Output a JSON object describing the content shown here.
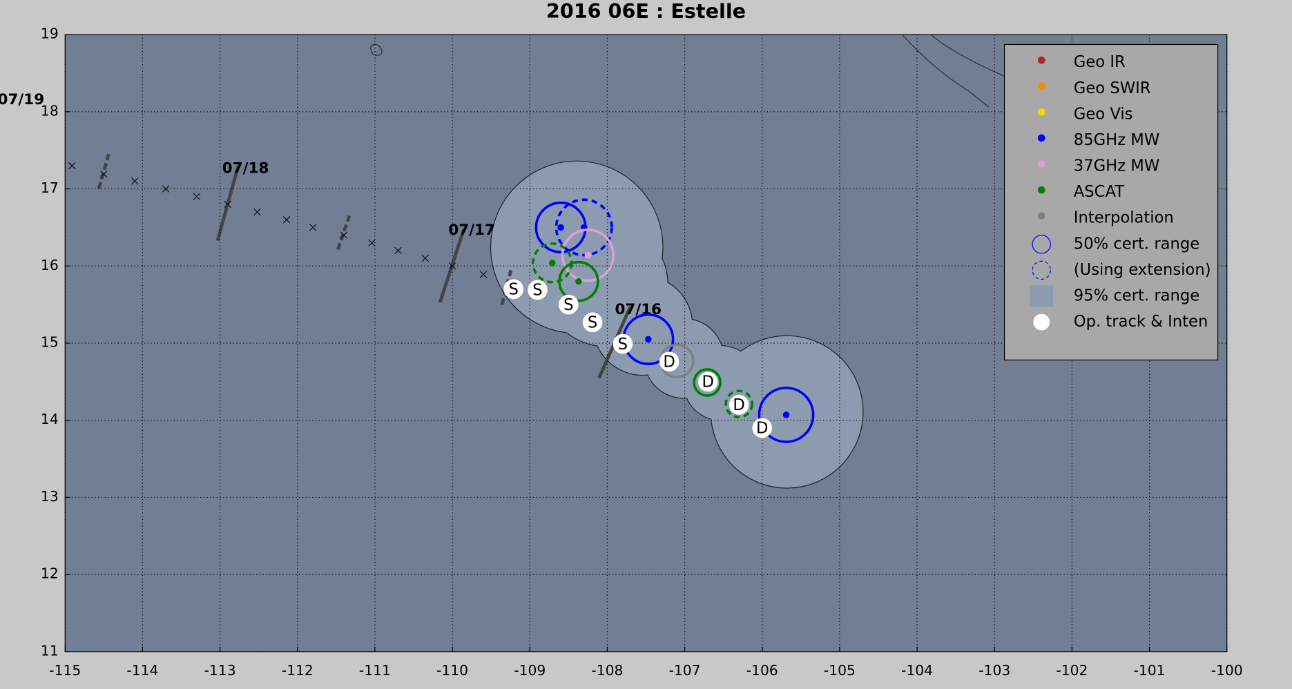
{
  "chart_data": {
    "type": "track_map",
    "title": "2016  06E :  Estelle",
    "xlim": [
      -115,
      -100
    ],
    "ylim": [
      11,
      19
    ],
    "xticks": [
      -115,
      -114,
      -113,
      -112,
      -111,
      -110,
      -109,
      -108,
      -107,
      -106,
      -105,
      -104,
      -103,
      -102,
      -101,
      -100
    ],
    "yticks": [
      11,
      12,
      13,
      14,
      15,
      16,
      17,
      18,
      19
    ],
    "grid": true,
    "series": [
      {
        "name": "Geo IR",
        "color": "#b22222",
        "x": [],
        "y": [],
        "r": [],
        "extension": []
      },
      {
        "name": "Geo SWIR",
        "color": "#ff8c00",
        "x": [],
        "y": [],
        "r": [],
        "extension": []
      },
      {
        "name": "Geo Vis",
        "color": "#ffd700",
        "x": [],
        "y": [],
        "r": [],
        "extension": []
      },
      {
        "name": "85GHz MW",
        "color": "#0000ff",
        "x": [
          -108.6,
          -108.3,
          -107.47,
          -105.69
        ],
        "y": [
          16.5,
          16.5,
          15.05,
          14.07
        ],
        "r": [
          0.32,
          0.36,
          0.32,
          0.35
        ],
        "extension": [
          false,
          true,
          false,
          false
        ]
      },
      {
        "name": "37GHz MW",
        "color": "#dda0dd",
        "x": [
          -108.25
        ],
        "y": [
          16.14
        ],
        "r": [
          0.33
        ],
        "extension": [
          false
        ]
      },
      {
        "name": "ASCAT",
        "color": "#008000",
        "x": [
          -108.71,
          -108.37,
          -106.71,
          -106.3
        ],
        "y": [
          16.04,
          15.8,
          14.49,
          14.21
        ],
        "r": [
          0.25,
          0.25,
          0.17,
          0.17
        ],
        "extension": [
          true,
          false,
          false,
          true
        ]
      },
      {
        "name": "Interpolation",
        "color": "#808080",
        "x": [
          -107.1
        ],
        "y": [
          14.77
        ],
        "r": [
          0.21
        ],
        "extension": [
          false
        ]
      }
    ],
    "legend_extras": [
      {
        "label": "50% cert. range",
        "marker": "circle",
        "color": "#0000ff"
      },
      {
        "label": "(Using extension)",
        "marker": "dashed-circle",
        "color": "#0000ff"
      },
      {
        "label": "95% cert. range",
        "marker": "square",
        "color": "#8c9bb0"
      },
      {
        "label": "Op. track & Inten",
        "marker": "large-dot",
        "color": "#ffffff"
      }
    ],
    "legend_position": "upper right",
    "op_track": {
      "x": [
        -109.21,
        -108.9,
        -108.5,
        -108.19,
        -107.8,
        -107.2,
        -106.7,
        -106.3,
        -106.0
      ],
      "y": [
        15.7,
        15.69,
        15.5,
        15.27,
        14.99,
        14.76,
        14.5,
        14.2,
        13.9
      ],
      "labels": [
        "S",
        "S",
        "S",
        "S",
        "S",
        "D",
        "D",
        "D",
        "D"
      ]
    },
    "best_track": {
      "x": [
        -114.91,
        -114.5,
        -114.1,
        -113.7,
        -113.3,
        -112.9,
        -112.52,
        -112.14,
        -111.8,
        -111.4,
        -111.04,
        -110.7,
        -110.35,
        -110.0,
        -109.6
      ],
      "y": [
        17.3,
        17.19,
        17.1,
        17.0,
        16.9,
        16.8,
        16.7,
        16.6,
        16.5,
        16.4,
        16.3,
        16.2,
        16.1,
        16.0,
        15.89
      ]
    },
    "annotations": [
      {
        "text": "07/19",
        "x": -115.57,
        "y": 18.15
      },
      {
        "text": "07/18",
        "x": -112.67,
        "y": 17.26
      },
      {
        "text": "07/17",
        "x": -109.75,
        "y": 16.46
      },
      {
        "text": "07/16",
        "x": -107.6,
        "y": 15.43
      }
    ]
  }
}
